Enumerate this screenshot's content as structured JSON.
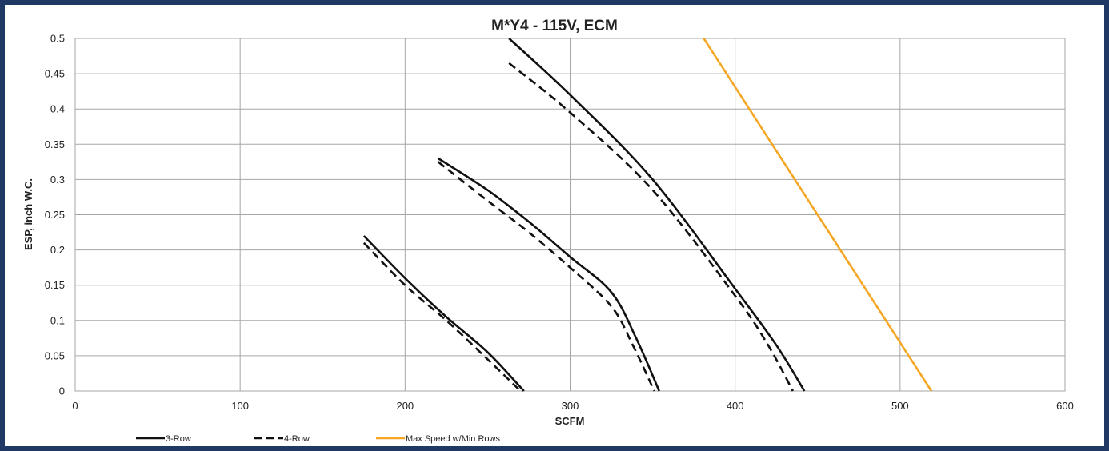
{
  "chart_data": {
    "type": "line",
    "title": "M*Y4 - 115V, ECM",
    "xlabel": "SCFM",
    "ylabel": "ESP, inch W.C.",
    "xlim": [
      0,
      600
    ],
    "ylim": [
      0,
      0.5
    ],
    "xticks": [
      0,
      100,
      200,
      300,
      400,
      500,
      600
    ],
    "yticks": [
      0,
      0.05,
      0.1,
      0.15,
      0.2,
      0.25,
      0.3,
      0.35,
      0.4,
      0.45,
      0.5
    ],
    "grid": true,
    "legend_position": "bottom",
    "series": [
      {
        "name": "3-Row",
        "style": "solid",
        "color": "#111111",
        "points": [
          [
            175,
            0.22
          ],
          [
            200,
            0.16
          ],
          [
            225,
            0.105
          ],
          [
            250,
            0.055
          ],
          [
            272,
            0.0
          ]
        ]
      },
      {
        "name": "3-Row",
        "style": "solid",
        "color": "#111111",
        "legend": false,
        "points": [
          [
            220,
            0.33
          ],
          [
            250,
            0.285
          ],
          [
            275,
            0.24
          ],
          [
            300,
            0.19
          ],
          [
            325,
            0.14
          ],
          [
            340,
            0.075
          ],
          [
            354,
            0.0
          ]
        ]
      },
      {
        "name": "3-Row",
        "style": "solid",
        "color": "#111111",
        "legend": false,
        "points": [
          [
            263,
            0.5
          ],
          [
            300,
            0.42
          ],
          [
            350,
            0.3
          ],
          [
            400,
            0.145
          ],
          [
            425,
            0.065
          ],
          [
            442,
            0.0
          ]
        ]
      },
      {
        "name": "4-Row",
        "style": "dashed",
        "color": "#111111",
        "points": [
          [
            175,
            0.21
          ],
          [
            200,
            0.15
          ],
          [
            225,
            0.1
          ],
          [
            250,
            0.045
          ],
          [
            270,
            0.0
          ]
        ]
      },
      {
        "name": "4-Row",
        "style": "dashed",
        "color": "#111111",
        "legend": false,
        "points": [
          [
            220,
            0.325
          ],
          [
            250,
            0.27
          ],
          [
            275,
            0.225
          ],
          [
            300,
            0.175
          ],
          [
            325,
            0.12
          ],
          [
            338,
            0.065
          ],
          [
            351,
            0.0
          ]
        ]
      },
      {
        "name": "4-Row",
        "style": "dashed",
        "color": "#111111",
        "legend": false,
        "points": [
          [
            263,
            0.465
          ],
          [
            300,
            0.395
          ],
          [
            350,
            0.285
          ],
          [
            400,
            0.135
          ],
          [
            420,
            0.065
          ],
          [
            435,
            0.0
          ]
        ]
      },
      {
        "name": "Max Speed w/Min Rows",
        "style": "solid",
        "color": "#f5a623",
        "points": [
          [
            381,
            0.5
          ],
          [
            519,
            0.0
          ]
        ]
      }
    ]
  }
}
